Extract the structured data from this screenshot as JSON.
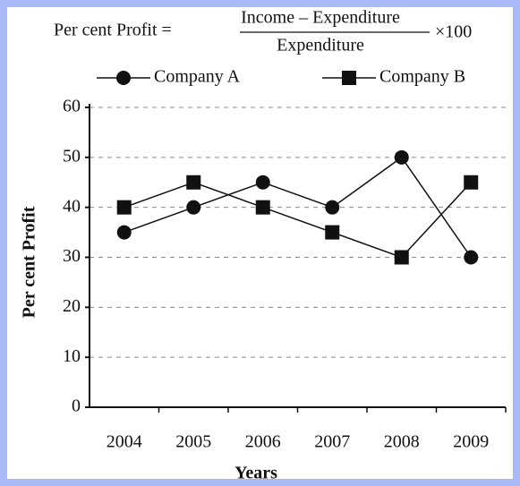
{
  "chart_data": {
    "type": "line",
    "title": {
      "left": "Per cent Profit =",
      "numerator": "Income – Expenditure",
      "denominator": "Expenditure",
      "right": "×100"
    },
    "x_label": "Years",
    "y_label": "Per cent Profit",
    "categories": [
      "2004",
      "2005",
      "2006",
      "2007",
      "2008",
      "2009"
    ],
    "series": [
      {
        "name": "Company A",
        "color": "#111111",
        "marker": "circle",
        "values": [
          35,
          40,
          45,
          40,
          50,
          30
        ]
      },
      {
        "name": "Company B",
        "color": "#111111",
        "marker": "square",
        "values": [
          40,
          45,
          40,
          35,
          30,
          45
        ]
      }
    ],
    "ylim": [
      0,
      60
    ],
    "yticks": [
      0,
      10,
      20,
      30,
      40,
      50,
      60
    ],
    "grid": true
  }
}
